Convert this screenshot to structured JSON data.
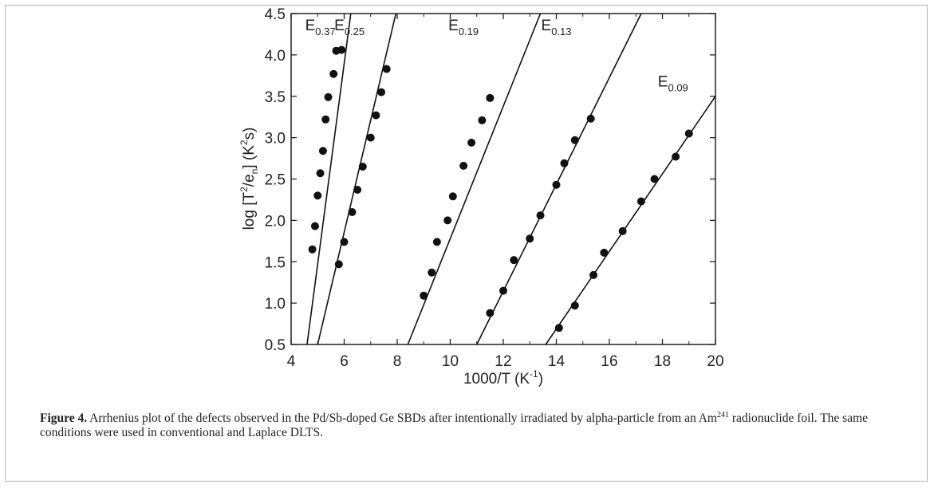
{
  "chart_data": {
    "type": "scatter",
    "xlabel": "1000/T (K",
    "xlabel_sup": "-1",
    "xlabel_end": ")",
    "ylabel_parts": [
      "log [T",
      "2",
      "/e",
      "n",
      "] (K",
      "2",
      "s)"
    ],
    "xlim": [
      4,
      20
    ],
    "ylim": [
      0.5,
      4.5
    ],
    "xticks": [
      "4",
      "6",
      "8",
      "10",
      "12",
      "14",
      "16",
      "18",
      "20"
    ],
    "yticks": [
      "0.5",
      "1.0",
      "1.5",
      "2.0",
      "2.5",
      "3.0",
      "3.5",
      "4.0",
      "4.5"
    ],
    "grid": false,
    "series": [
      {
        "name": "E0.37",
        "label_main": "E",
        "label_sub": "0.37",
        "x": [
          4.8,
          4.9,
          5.0,
          5.1,
          5.2,
          5.3,
          5.4,
          5.6,
          5.7,
          5.9
        ],
        "y": [
          1.65,
          1.93,
          2.3,
          2.57,
          2.84,
          3.22,
          3.49,
          3.77,
          4.05,
          4.06
        ],
        "fit": [
          [
            4.6,
            0.5
          ],
          [
            6.25,
            4.5
          ]
        ]
      },
      {
        "name": "E0.25",
        "label_main": "E",
        "label_sub": "0.25",
        "x": [
          5.8,
          6.0,
          6.3,
          6.5,
          6.7,
          7.0,
          7.2,
          7.4,
          7.6
        ],
        "y": [
          1.47,
          1.74,
          2.1,
          2.37,
          2.65,
          3.0,
          3.27,
          3.55,
          3.83
        ],
        "fit": [
          [
            5.0,
            0.5
          ],
          [
            7.95,
            4.5
          ]
        ]
      },
      {
        "name": "E0.19",
        "label_main": "E",
        "label_sub": "0.19",
        "x": [
          9.0,
          9.3,
          9.5,
          9.9,
          10.1,
          10.5,
          10.8,
          11.2,
          11.5
        ],
        "y": [
          1.09,
          1.37,
          1.74,
          2.0,
          2.29,
          2.66,
          2.94,
          3.21,
          3.48
        ],
        "fit": [
          [
            8.4,
            0.5
          ],
          [
            13.4,
            4.5
          ]
        ]
      },
      {
        "name": "E0.13",
        "label_main": "E",
        "label_sub": "0.13",
        "x": [
          11.5,
          12.0,
          12.4,
          13.0,
          13.4,
          14.0,
          14.3,
          14.7,
          15.3
        ],
        "y": [
          0.88,
          1.15,
          1.52,
          1.78,
          2.06,
          2.43,
          2.69,
          2.97,
          3.23
        ],
        "fit": [
          [
            11.0,
            0.5
          ],
          [
            17.2,
            4.5
          ]
        ]
      },
      {
        "name": "E0.09",
        "label_main": "E",
        "label_sub": "0.09",
        "x": [
          14.1,
          14.7,
          15.4,
          15.8,
          16.5,
          17.2,
          17.7,
          18.5,
          19.0
        ],
        "y": [
          0.7,
          0.97,
          1.34,
          1.61,
          1.87,
          2.23,
          2.5,
          2.77,
          3.05
        ],
        "fit": [
          [
            13.6,
            0.5
          ],
          [
            20.0,
            3.5
          ]
        ]
      }
    ]
  },
  "caption": {
    "label": "Figure 4.",
    "text1": " Arrhenius plot of the defects observed in the Pd/Sb-doped Ge SBDs after intentionally irradiated by alpha-particle from an Am",
    "sup": "241",
    "text2": " radionuclide foil. The same conditions were used in conventional and Laplace DLTS."
  }
}
